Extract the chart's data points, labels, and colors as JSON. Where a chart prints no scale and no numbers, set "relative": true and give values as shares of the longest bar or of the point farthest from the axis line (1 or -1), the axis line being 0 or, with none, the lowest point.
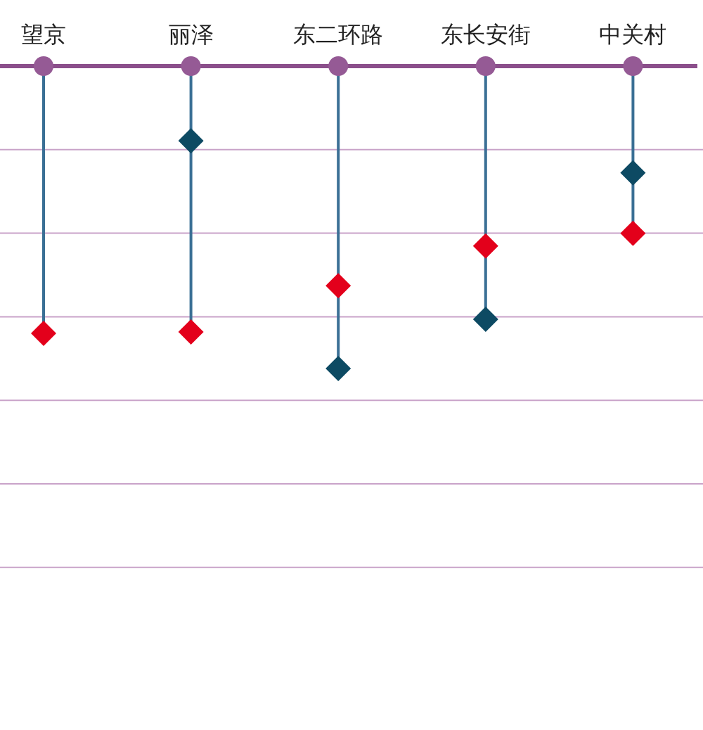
{
  "chart_data": {
    "type": "lollipop",
    "relative": true,
    "grid": true,
    "marker": "diamond",
    "categories": [
      "望京",
      "丽泽",
      "东二环路",
      "东长安街",
      "中关村"
    ],
    "series": [
      {
        "color": "#0d4a63",
        "values": [
          null,
          -0.247,
          -1,
          -0.837,
          -0.353
        ]
      },
      {
        "color": "#e3001b",
        "values": [
          -0.884,
          -0.879,
          -0.726,
          -0.595,
          -0.553
        ]
      }
    ]
  }
}
